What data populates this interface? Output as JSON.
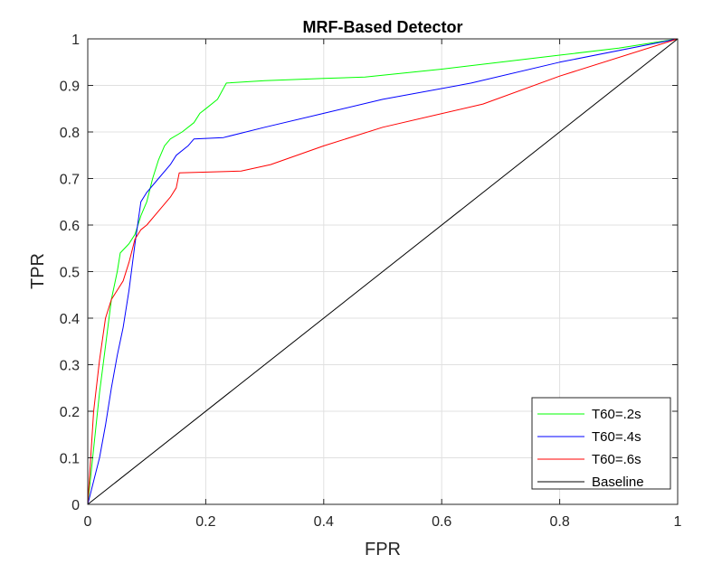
{
  "chart_data": {
    "type": "line",
    "title": "MRF-Based Detector",
    "xlabel": "FPR",
    "ylabel": "TPR",
    "xlim": [
      0,
      1
    ],
    "ylim": [
      0,
      1
    ],
    "xticks": [
      "0",
      "0.2",
      "0.4",
      "0.6",
      "0.8",
      "1"
    ],
    "yticks": [
      "0",
      "0.1",
      "0.2",
      "0.3",
      "0.4",
      "0.5",
      "0.6",
      "0.7",
      "0.8",
      "0.9",
      "1"
    ],
    "grid": true,
    "legend_position": "bottom-right",
    "series": [
      {
        "name": "T60=.2s",
        "color": "#00ff00",
        "x": [
          0,
          0.01,
          0.02,
          0.03,
          0.04,
          0.05,
          0.055,
          0.07,
          0.08,
          0.09,
          0.1,
          0.11,
          0.12,
          0.13,
          0.14,
          0.16,
          0.18,
          0.19,
          0.2,
          0.22,
          0.235,
          0.3,
          0.4,
          0.47,
          0.6,
          0.7,
          0.8,
          0.9,
          1.0
        ],
        "y": [
          0,
          0.12,
          0.24,
          0.34,
          0.44,
          0.5,
          0.54,
          0.56,
          0.58,
          0.62,
          0.65,
          0.7,
          0.74,
          0.77,
          0.785,
          0.8,
          0.82,
          0.84,
          0.85,
          0.87,
          0.905,
          0.91,
          0.915,
          0.918,
          0.935,
          0.95,
          0.965,
          0.98,
          1.0
        ]
      },
      {
        "name": "T60=.4s",
        "color": "#0000ff",
        "x": [
          0,
          0.01,
          0.02,
          0.03,
          0.04,
          0.05,
          0.06,
          0.07,
          0.08,
          0.09,
          0.1,
          0.12,
          0.14,
          0.15,
          0.17,
          0.18,
          0.23,
          0.3,
          0.4,
          0.5,
          0.65,
          0.8,
          1.0
        ],
        "y": [
          0,
          0.05,
          0.1,
          0.17,
          0.25,
          0.32,
          0.38,
          0.46,
          0.56,
          0.65,
          0.67,
          0.7,
          0.73,
          0.75,
          0.77,
          0.785,
          0.788,
          0.81,
          0.84,
          0.87,
          0.905,
          0.95,
          1.0
        ]
      },
      {
        "name": "T60=.6s",
        "color": "#ff0000",
        "x": [
          0,
          0.01,
          0.02,
          0.03,
          0.04,
          0.05,
          0.06,
          0.07,
          0.08,
          0.09,
          0.1,
          0.12,
          0.14,
          0.15,
          0.155,
          0.26,
          0.31,
          0.4,
          0.5,
          0.67,
          0.8,
          1.0
        ],
        "y": [
          0,
          0.2,
          0.31,
          0.4,
          0.44,
          0.46,
          0.48,
          0.52,
          0.57,
          0.59,
          0.6,
          0.63,
          0.66,
          0.68,
          0.712,
          0.716,
          0.73,
          0.77,
          0.81,
          0.86,
          0.92,
          1.0
        ]
      },
      {
        "name": "Baseline",
        "color": "#000000",
        "x": [
          0,
          1
        ],
        "y": [
          0,
          1
        ]
      }
    ]
  }
}
